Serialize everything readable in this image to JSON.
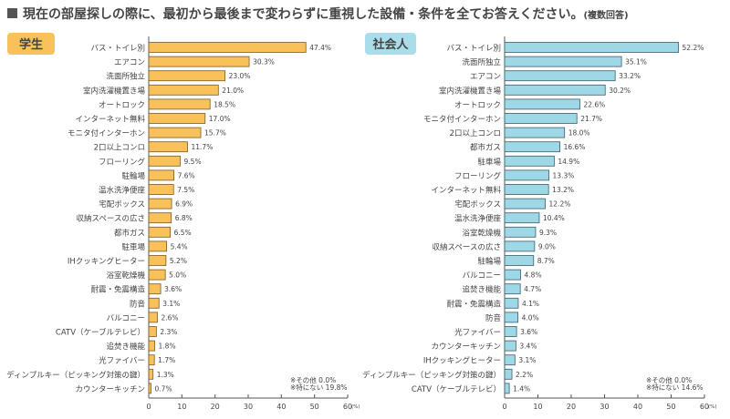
{
  "title": "現在の部屋探しの際に、最初から最後まで変わらずに重視した設備・条件を全てお答えください。",
  "title_note": "(複数回答)",
  "colors": {
    "student_bar": "#F9C15A",
    "student_border": "#7A5A2A",
    "worker_bar": "#9ED8E6",
    "worker_border": "#3C5E68",
    "title_square": "#555555",
    "text": "#444444"
  },
  "chart_data": [
    {
      "type": "bar",
      "orientation": "horizontal",
      "group_label": "学生",
      "xlim": [
        0,
        60
      ],
      "xticks": [
        "0",
        "10",
        "20",
        "30",
        "40",
        "50",
        "60"
      ],
      "unit": "(%)",
      "categories": [
        "バス・トイレ別",
        "エアコン",
        "洗面所独立",
        "室内洗濯機置き場",
        "オートロック",
        "インターネット無料",
        "モニタ付インターホン",
        "2口以上コンロ",
        "フローリング",
        "駐輪場",
        "温水洗浄便座",
        "宅配ボックス",
        "収納スペースの広さ",
        "都市ガス",
        "駐車場",
        "IHクッキングヒーター",
        "浴室乾燥機",
        "耐震・免震構造",
        "防音",
        "バルコニー",
        "CATV（ケーブルテレビ）",
        "追焚き機能",
        "光ファイバー",
        "ディンプルキー（ピッキング対策の鍵）",
        "カウンターキッチン"
      ],
      "values": [
        47.4,
        30.3,
        23.0,
        21.0,
        18.5,
        17.0,
        15.7,
        11.7,
        9.5,
        7.6,
        7.5,
        6.9,
        6.8,
        6.5,
        5.4,
        5.2,
        5.0,
        3.6,
        3.1,
        2.6,
        2.3,
        1.8,
        1.7,
        1.3,
        0.7
      ],
      "value_labels": [
        "47.4%",
        "30.3%",
        "23.0%",
        "21.0%",
        "18.5%",
        "17.0%",
        "15.7%",
        "11.7%",
        "9.5%",
        "7.6%",
        "7.5%",
        "6.9%",
        "6.8%",
        "6.5%",
        "5.4%",
        "5.2%",
        "5.0%",
        "3.6%",
        "3.1%",
        "2.6%",
        "2.3%",
        "1.8%",
        "1.7%",
        "1.3%",
        "0.7%"
      ],
      "notes": [
        "※その他 0.0%",
        "※特にない 19.8%"
      ]
    },
    {
      "type": "bar",
      "orientation": "horizontal",
      "group_label": "社会人",
      "xlim": [
        0,
        60
      ],
      "xticks": [
        "0",
        "10",
        "20",
        "30",
        "40",
        "50",
        "60"
      ],
      "unit": "(%)",
      "categories": [
        "バス・トイレ別",
        "洗面所独立",
        "エアコン",
        "室内洗濯機置き場",
        "オートロック",
        "モニタ付インターホン",
        "2口以上コンロ",
        "都市ガス",
        "駐車場",
        "フローリング",
        "インターネット無料",
        "宅配ボックス",
        "温水洗浄便座",
        "浴室乾燥機",
        "収納スペースの広さ",
        "駐輪場",
        "バルコニー",
        "追焚き機能",
        "耐震・免震構造",
        "防音",
        "光ファイバー",
        "カウンターキッチン",
        "IHクッキングヒーター",
        "ディンプルキー（ピッキング対策の鍵）",
        "CATV（ケーブルテレビ）"
      ],
      "values": [
        52.2,
        35.1,
        33.2,
        30.2,
        22.6,
        21.7,
        18.0,
        16.6,
        14.9,
        13.3,
        13.2,
        12.2,
        10.4,
        9.3,
        9.0,
        8.7,
        4.8,
        4.7,
        4.1,
        4.0,
        3.6,
        3.4,
        3.1,
        2.2,
        1.4
      ],
      "value_labels": [
        "52.2%",
        "35.1%",
        "33.2%",
        "30.2%",
        "22.6%",
        "21.7%",
        "18.0%",
        "16.6%",
        "14.9%",
        "13.3%",
        "13.2%",
        "12.2%",
        "10.4%",
        "9.3%",
        "9.0%",
        "8.7%",
        "4.8%",
        "4.7%",
        "4.1%",
        "4.0%",
        "3.6%",
        "3.4%",
        "3.1%",
        "2.2%",
        "1.4%"
      ],
      "notes": [
        "※その他 0.0%",
        "※特にない 14.6%"
      ]
    }
  ]
}
